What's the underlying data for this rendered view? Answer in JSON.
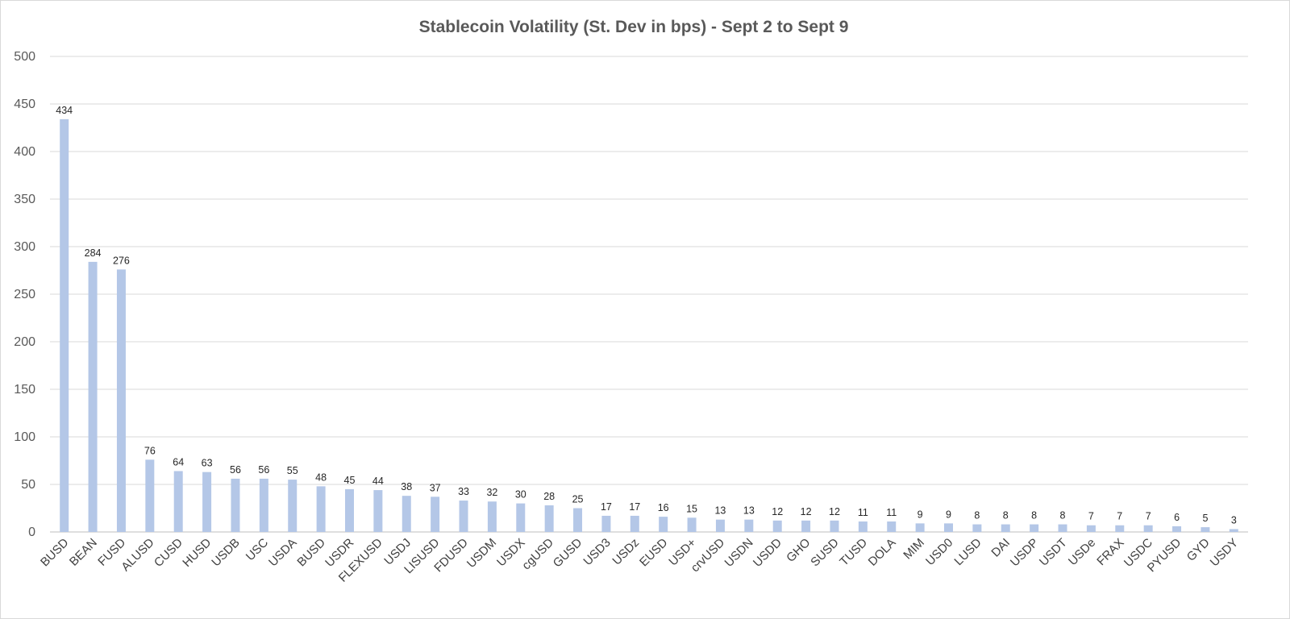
{
  "chart_data": {
    "type": "bar",
    "title": "Stablecoin Volatility (St. Dev in bps) - Sept 2 to Sept 9",
    "xlabel": "",
    "ylabel": "",
    "ylim": [
      0,
      500
    ],
    "yticks": [
      0,
      50,
      100,
      150,
      200,
      250,
      300,
      350,
      400,
      450,
      500
    ],
    "grid": true,
    "legend": "none",
    "bar_color": "#b4c7e7",
    "categories": [
      "BUSD",
      "BEAN",
      "FUSD",
      "ALUSD",
      "CUSD",
      "HUSD",
      "USDB",
      "USC",
      "USDA",
      "BUSD",
      "USDR",
      "FLEXUSD",
      "USDJ",
      "LISUSD",
      "FDUSD",
      "USDM",
      "USDX",
      "cgUSD",
      "GUSD",
      "USD3",
      "USDz",
      "EUSD",
      "USD+",
      "crvUSD",
      "USDN",
      "USDD",
      "GHO",
      "SUSD",
      "TUSD",
      "DOLA",
      "MIM",
      "USD0",
      "LUSD",
      "DAI",
      "USDP",
      "USDT",
      "USDe",
      "FRAX",
      "USDC",
      "PYUSD",
      "GYD",
      "USDY"
    ],
    "values": [
      434,
      284,
      276,
      76,
      64,
      63,
      56,
      56,
      55,
      48,
      45,
      44,
      38,
      37,
      33,
      32,
      30,
      28,
      25,
      17,
      17,
      16,
      15,
      13,
      13,
      12,
      12,
      12,
      11,
      11,
      9,
      9,
      8,
      8,
      8,
      8,
      7,
      7,
      7,
      6,
      5,
      3
    ]
  }
}
